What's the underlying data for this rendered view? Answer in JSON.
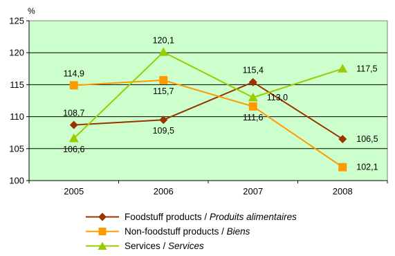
{
  "chart_data": {
    "type": "line",
    "unit": "%",
    "x": [
      "2005",
      "2006",
      "2007",
      "2008"
    ],
    "ylim": [
      100,
      125
    ],
    "yticks": [
      100,
      105,
      110,
      115,
      120,
      125
    ],
    "grid": true,
    "legend_position": "bottom",
    "series": [
      {
        "name": "Foodstuff products / ",
        "name_italic": "Produits alimentaires",
        "color": "#993300",
        "marker": "diamond",
        "values": [
          108.7,
          109.5,
          115.4,
          106.5
        ],
        "labels": [
          "108,7",
          "109,5",
          "115,4",
          "106,5"
        ]
      },
      {
        "name": "Non-foodstuff products / ",
        "name_italic": "Biens",
        "color": "#FF9900",
        "marker": "square",
        "values": [
          114.9,
          115.7,
          111.6,
          102.1
        ],
        "labels": [
          "114,9",
          "115,7",
          "111,6",
          "102,1"
        ]
      },
      {
        "name": "Services / ",
        "name_italic": "Services",
        "color": "#99CC00",
        "marker": "triangle",
        "values": [
          106.6,
          120.1,
          113.0,
          117.5
        ],
        "labels": [
          "106,6",
          "120,1",
          "113,0",
          "117,5"
        ]
      }
    ]
  }
}
